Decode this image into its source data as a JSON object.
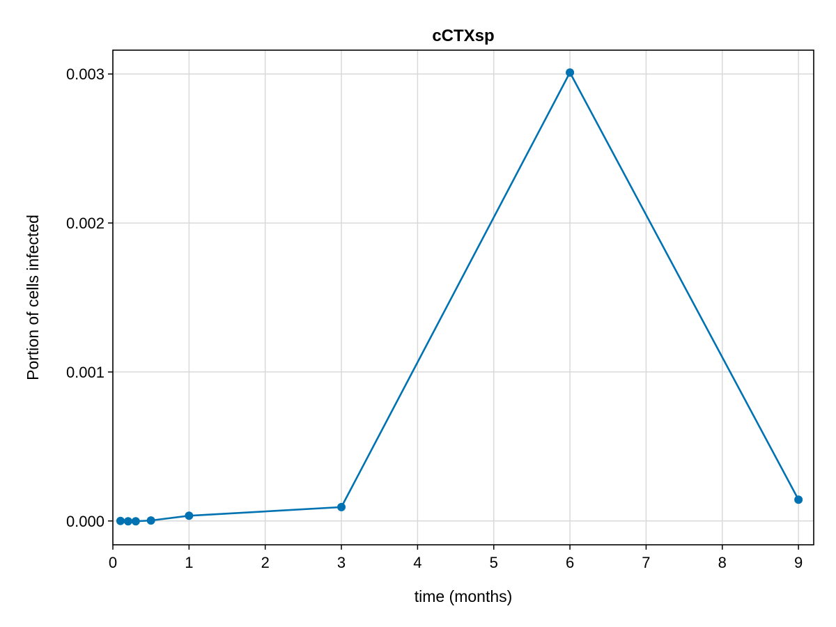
{
  "chart_data": {
    "type": "line",
    "title": "cCTXsp",
    "xlabel": "time (months)",
    "ylabel": "Portion of cells infected",
    "xlim": [
      0,
      9.2
    ],
    "ylim": [
      -0.00016,
      0.00316
    ],
    "xticks": [
      0,
      1,
      2,
      3,
      4,
      5,
      6,
      7,
      8,
      9
    ],
    "xtick_labels": [
      "0",
      "1",
      "2",
      "3",
      "4",
      "5",
      "6",
      "7",
      "8",
      "9"
    ],
    "yticks": [
      0.0,
      0.001,
      0.002,
      0.003
    ],
    "ytick_labels": [
      "0.000",
      "0.001",
      "0.002",
      "0.003"
    ],
    "grid": true,
    "legend": false,
    "series": [
      {
        "color": "#0072b2",
        "marker": "circle",
        "x": [
          0.1,
          0.2,
          0.3,
          0.5,
          1,
          3,
          6,
          9
        ],
        "y": [
          0.0,
          -2e-06,
          -2e-06,
          3e-06,
          3.5e-05,
          9.3e-05,
          0.00301,
          0.000143
        ]
      }
    ]
  }
}
